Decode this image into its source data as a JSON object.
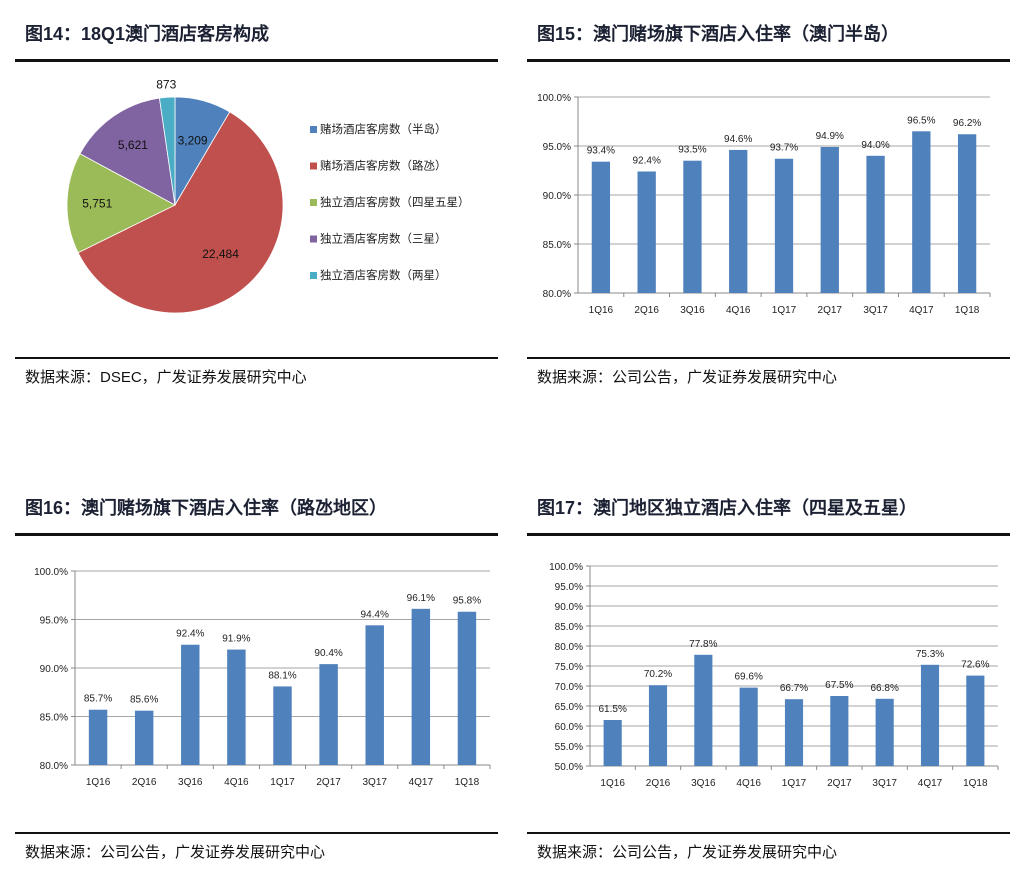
{
  "fig14": {
    "title": "图14：18Q1澳门酒店客房构成",
    "source": "数据来源：DSEC，广发证券发展研究中心",
    "chart_data": {
      "type": "pie",
      "labels": [
        "赌场酒店客房数（半岛）",
        "赌场酒店客房数（路氹）",
        "独立酒店客房数（四星五星）",
        "独立酒店客房数（三星）",
        "独立酒店客房数（两星）"
      ],
      "values": [
        3209,
        22484,
        5751,
        5621,
        873
      ],
      "data_labels": [
        "3,209",
        "22,484",
        "5,751",
        "5,621",
        "873"
      ],
      "colors": [
        "#4f81bd",
        "#c0504d",
        "#9bbb59",
        "#8064a2",
        "#4bacc6"
      ],
      "legend": "right"
    }
  },
  "fig15": {
    "title": "图15：澳门赌场旗下酒店入住率（澳门半岛）",
    "source": "数据来源：公司公告，广发证券发展研究中心",
    "chart_data": {
      "type": "bar",
      "categories": [
        "1Q16",
        "2Q16",
        "3Q16",
        "4Q16",
        "1Q17",
        "2Q17",
        "3Q17",
        "4Q17",
        "1Q18"
      ],
      "values": [
        93.4,
        92.4,
        93.5,
        94.6,
        93.7,
        94.9,
        94.0,
        96.5,
        96.2
      ],
      "data_labels": [
        "93.4%",
        "92.4%",
        "93.5%",
        "94.6%",
        "93.7%",
        "94.9%",
        "94.0%",
        "96.5%",
        "96.2%"
      ],
      "ylim": [
        80,
        100
      ],
      "yticks": [
        "80.0%",
        "85.0%",
        "90.0%",
        "95.0%",
        "100.0%"
      ],
      "grid": true,
      "color": "#4f81bd"
    }
  },
  "fig16": {
    "title": "图16：澳门赌场旗下酒店入住率（路氹地区）",
    "source": "数据来源：公司公告，广发证券发展研究中心",
    "chart_data": {
      "type": "bar",
      "categories": [
        "1Q16",
        "2Q16",
        "3Q16",
        "4Q16",
        "1Q17",
        "2Q17",
        "3Q17",
        "4Q17",
        "1Q18"
      ],
      "values": [
        85.7,
        85.6,
        92.4,
        91.9,
        88.1,
        90.4,
        94.4,
        96.1,
        95.8
      ],
      "data_labels": [
        "85.7%",
        "85.6%",
        "92.4%",
        "91.9%",
        "88.1%",
        "90.4%",
        "94.4%",
        "96.1%",
        "95.8%"
      ],
      "ylim": [
        80,
        100
      ],
      "yticks": [
        "80.0%",
        "85.0%",
        "90.0%",
        "95.0%",
        "100.0%"
      ],
      "grid": true,
      "color": "#4f81bd"
    }
  },
  "fig17": {
    "title": "图17：澳门地区独立酒店入住率（四星及五星）",
    "source": "数据来源：公司公告，广发证券发展研究中心",
    "chart_data": {
      "type": "bar",
      "categories": [
        "1Q16",
        "2Q16",
        "3Q16",
        "4Q16",
        "1Q17",
        "2Q17",
        "3Q17",
        "4Q17",
        "1Q18"
      ],
      "values": [
        61.5,
        70.2,
        77.8,
        69.6,
        66.7,
        67.5,
        66.8,
        75.3,
        72.6
      ],
      "data_labels": [
        "61.5%",
        "70.2%",
        "77.8%",
        "69.6%",
        "66.7%",
        "67.5%",
        "66.8%",
        "75.3%",
        "72.6%"
      ],
      "ylim": [
        50,
        100
      ],
      "yticks": [
        "50.0%",
        "55.0%",
        "60.0%",
        "65.0%",
        "70.0%",
        "75.0%",
        "80.0%",
        "85.0%",
        "90.0%",
        "95.0%",
        "100.0%"
      ],
      "grid": true,
      "color": "#4f81bd"
    }
  }
}
